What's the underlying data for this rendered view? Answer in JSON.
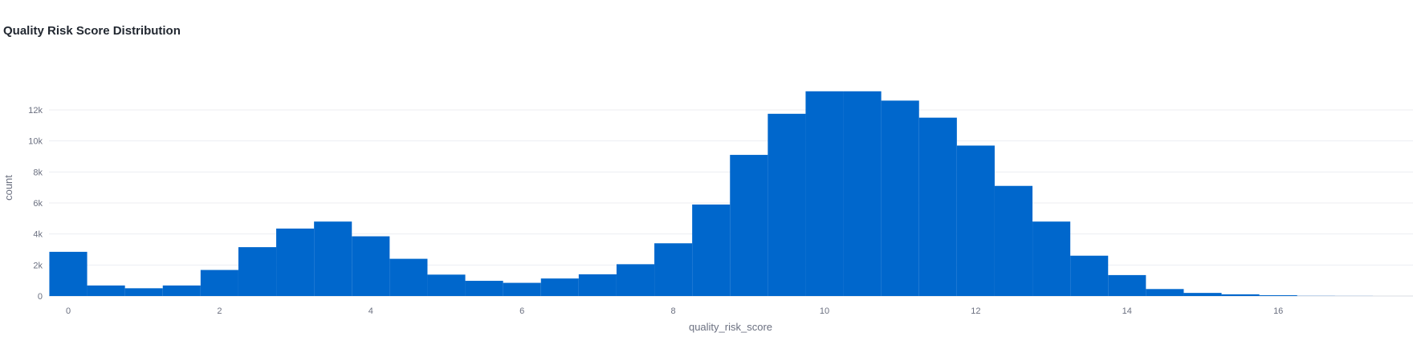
{
  "chart_data": {
    "type": "bar",
    "title": "Quality Risk Score Distribution",
    "xlabel": "quality_risk_score",
    "ylabel": "count",
    "xlim": [
      -0.25,
      17.5
    ],
    "ylim": [
      0,
      14000
    ],
    "xticks": [
      0,
      2,
      4,
      6,
      8,
      10,
      12,
      14,
      16
    ],
    "xtick_labels": [
      "0",
      "2",
      "4",
      "6",
      "8",
      "10",
      "12",
      "14",
      "16"
    ],
    "yticks": [
      0,
      2000,
      4000,
      6000,
      8000,
      10000,
      12000
    ],
    "ytick_labels": [
      "0",
      "2k",
      "4k",
      "6k",
      "8k",
      "10k",
      "12k"
    ],
    "grid": true,
    "bin_width": 0.5,
    "bins_start": -0.25,
    "values": [
      2850,
      680,
      500,
      680,
      1680,
      3150,
      4350,
      4800,
      3850,
      2400,
      1380,
      980,
      850,
      1130,
      1400,
      2050,
      3400,
      5900,
      9100,
      11750,
      13200,
      13200,
      12600,
      11500,
      9700,
      7100,
      4800,
      2600,
      1350,
      450,
      200,
      110,
      50,
      10,
      5
    ],
    "color": "#0067cc"
  }
}
